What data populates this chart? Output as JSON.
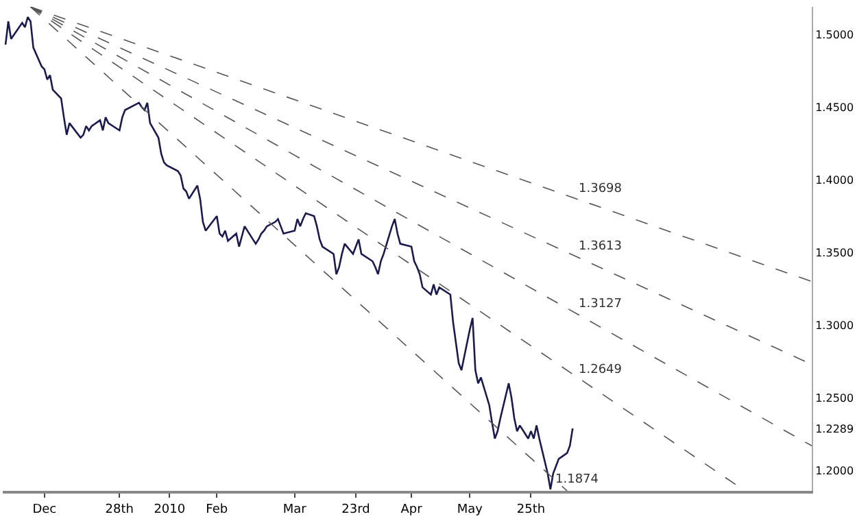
{
  "chart_data": {
    "type": "line",
    "xlim": [
      "2009-11-16",
      "2010-09-03"
    ],
    "ylim": [
      1.186,
      1.519
    ],
    "xticks": [
      {
        "value": "2009-12-01",
        "label": "Dec"
      },
      {
        "value": "2009-12-28",
        "label": "28th"
      },
      {
        "value": "2010-01-15",
        "label": "2010"
      },
      {
        "value": "2010-02-01",
        "label": "Feb"
      },
      {
        "value": "2010-03-01",
        "label": "Mar"
      },
      {
        "value": "2010-03-23",
        "label": "23rd"
      },
      {
        "value": "2010-04-12",
        "label": "Apr"
      },
      {
        "value": "2010-05-03",
        "label": "May"
      },
      {
        "value": "2010-05-25",
        "label": "25th"
      }
    ],
    "yticks": [
      {
        "value": 1.2,
        "label": "1.2000"
      },
      {
        "value": 1.2289,
        "label": "1.2289"
      },
      {
        "value": 1.25,
        "label": "1.2500"
      },
      {
        "value": 1.3,
        "label": "1.3000"
      },
      {
        "value": 1.35,
        "label": "1.3500"
      },
      {
        "value": 1.4,
        "label": "1.4000"
      },
      {
        "value": 1.45,
        "label": "1.4500"
      },
      {
        "value": 1.5,
        "label": "1.5000"
      }
    ],
    "annotations": [
      {
        "text": "1.3698",
        "x": "2010-06-10",
        "y": 1.387
      },
      {
        "text": "1.3613",
        "x": "2010-06-10",
        "y": 1.347
      },
      {
        "text": "1.3127",
        "x": "2010-06-10",
        "y": 1.308
      },
      {
        "text": "1.2649",
        "x": "2010-06-10",
        "y": 1.262
      },
      {
        "text": "1.1874",
        "x": "2010-06-02",
        "y": 1.187
      }
    ],
    "series": [
      {
        "color": "#1a1a4e",
        "line_style": "solid",
        "x": [
          "2009-11-17",
          "2009-11-18",
          "2009-11-19",
          "2009-11-23",
          "2009-11-24",
          "2009-11-25",
          "2009-11-26",
          "2009-11-27",
          "2009-11-30",
          "2009-12-01",
          "2009-12-02",
          "2009-12-03",
          "2009-12-04",
          "2009-12-07",
          "2009-12-08",
          "2009-12-09",
          "2009-12-10",
          "2009-12-14",
          "2009-12-15",
          "2009-12-16",
          "2009-12-17",
          "2009-12-18",
          "2009-12-21",
          "2009-12-22",
          "2009-12-23",
          "2009-12-24",
          "2009-12-28",
          "2009-12-29",
          "2009-12-30",
          "2010-01-04",
          "2010-01-05",
          "2010-01-06",
          "2010-01-07",
          "2010-01-08",
          "2010-01-11",
          "2010-01-12",
          "2010-01-13",
          "2010-01-14",
          "2010-01-18",
          "2010-01-19",
          "2010-01-20",
          "2010-01-21",
          "2010-01-22",
          "2010-01-25",
          "2010-01-26",
          "2010-01-27",
          "2010-01-28",
          "2010-02-01",
          "2010-02-02",
          "2010-02-03",
          "2010-02-04",
          "2010-02-05",
          "2010-02-08",
          "2010-02-09",
          "2010-02-10",
          "2010-02-11",
          "2010-02-15",
          "2010-02-16",
          "2010-02-17",
          "2010-02-18",
          "2010-02-19",
          "2010-02-22",
          "2010-02-23",
          "2010-02-24",
          "2010-02-25",
          "2010-03-01",
          "2010-03-02",
          "2010-03-03",
          "2010-03-04",
          "2010-03-05",
          "2010-03-08",
          "2010-03-09",
          "2010-03-10",
          "2010-03-11",
          "2010-03-15",
          "2010-03-16",
          "2010-03-17",
          "2010-03-18",
          "2010-03-19",
          "2010-03-22",
          "2010-03-23",
          "2010-03-24",
          "2010-03-25",
          "2010-03-29",
          "2010-03-30",
          "2010-03-31",
          "2010-04-01",
          "2010-04-02",
          "2010-04-05",
          "2010-04-06",
          "2010-04-07",
          "2010-04-08",
          "2010-04-12",
          "2010-04-13",
          "2010-04-14",
          "2010-04-15",
          "2010-04-16",
          "2010-04-19",
          "2010-04-20",
          "2010-04-21",
          "2010-04-22",
          "2010-04-26",
          "2010-04-27",
          "2010-04-28",
          "2010-04-29",
          "2010-04-30",
          "2010-05-03",
          "2010-05-04",
          "2010-05-05",
          "2010-05-06",
          "2010-05-07",
          "2010-05-10",
          "2010-05-11",
          "2010-05-12",
          "2010-05-13",
          "2010-05-14",
          "2010-05-17",
          "2010-05-18",
          "2010-05-19",
          "2010-05-20",
          "2010-05-21",
          "2010-05-24",
          "2010-05-25",
          "2010-05-26",
          "2010-05-27",
          "2010-05-28",
          "2010-05-31",
          "2010-06-01",
          "2010-06-02",
          "2010-06-03",
          "2010-06-04",
          "2010-06-07",
          "2010-06-08",
          "2010-06-09"
        ],
        "values": [
          1.493,
          1.509,
          1.497,
          1.508,
          1.505,
          1.512,
          1.509,
          1.491,
          1.478,
          1.476,
          1.469,
          1.472,
          1.462,
          1.456,
          1.443,
          1.431,
          1.439,
          1.429,
          1.431,
          1.437,
          1.434,
          1.437,
          1.441,
          1.434,
          1.443,
          1.439,
          1.434,
          1.443,
          1.448,
          1.453,
          1.45,
          1.448,
          1.453,
          1.439,
          1.429,
          1.418,
          1.412,
          1.41,
          1.406,
          1.403,
          1.394,
          1.392,
          1.387,
          1.396,
          1.387,
          1.371,
          1.365,
          1.375,
          1.363,
          1.361,
          1.365,
          1.358,
          1.363,
          1.354,
          1.361,
          1.368,
          1.356,
          1.359,
          1.363,
          1.365,
          1.368,
          1.371,
          1.373,
          1.368,
          1.363,
          1.365,
          1.373,
          1.368,
          1.373,
          1.377,
          1.375,
          1.368,
          1.359,
          1.354,
          1.349,
          1.335,
          1.34,
          1.349,
          1.356,
          1.349,
          1.354,
          1.359,
          1.349,
          1.344,
          1.34,
          1.335,
          1.344,
          1.349,
          1.368,
          1.373,
          1.363,
          1.356,
          1.354,
          1.344,
          1.34,
          1.335,
          1.326,
          1.321,
          1.328,
          1.321,
          1.326,
          1.321,
          1.302,
          1.288,
          1.274,
          1.269,
          1.297,
          1.305,
          1.269,
          1.26,
          1.264,
          1.245,
          1.233,
          1.222,
          1.227,
          1.236,
          1.26,
          1.25,
          1.236,
          1.227,
          1.231,
          1.222,
          1.227,
          1.222,
          1.231,
          1.222,
          1.198,
          1.187,
          1.198,
          1.203,
          1.208,
          1.212,
          1.217,
          1.229
        ]
      },
      {
        "color": "#555555",
        "line_style": "dashed",
        "x": [
          "2009-11-26",
          "2010-09-03"
        ],
        "values": [
          1.519,
          1.33
        ]
      },
      {
        "color": "#555555",
        "line_style": "dashed",
        "x": [
          "2009-11-26",
          "2010-09-03"
        ],
        "values": [
          1.519,
          1.273
        ]
      },
      {
        "color": "#555555",
        "line_style": "dashed",
        "x": [
          "2009-11-26",
          "2010-09-03"
        ],
        "values": [
          1.519,
          1.217
        ]
      },
      {
        "color": "#555555",
        "line_style": "dashed",
        "x": [
          "2009-11-26",
          "2010-08-10"
        ],
        "values": [
          1.519,
          1.186
        ]
      },
      {
        "color": "#555555",
        "line_style": "dashed",
        "x": [
          "2009-11-26",
          "2010-06-07"
        ],
        "values": [
          1.519,
          1.186
        ]
      }
    ]
  }
}
